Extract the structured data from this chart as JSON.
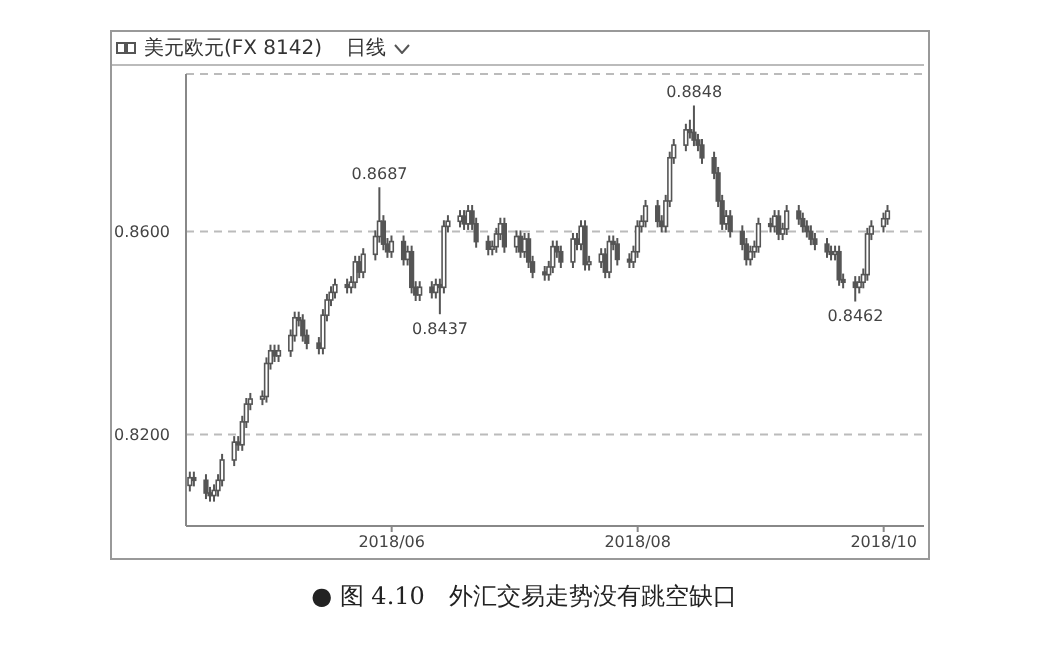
{
  "chart_data": {
    "type": "candlestick",
    "title": "美元欧元(FX 8142)",
    "subtitle": "日线",
    "color": "#555555",
    "grid": "y",
    "xlim": [
      "2018-04-11",
      "2018-10-11"
    ],
    "xticks": [
      {
        "value": "2018-06-01",
        "label": "2018/06"
      },
      {
        "value": "2018-08-01",
        "label": "2018/08"
      },
      {
        "value": "2018-10-01",
        "label": "2018/10"
      }
    ],
    "ylim": [
      0.802,
      0.891
    ],
    "yticks": [
      {
        "value": 0.82,
        "label": "0.8200"
      },
      {
        "value": 0.86,
        "label": "0.8600"
      }
    ],
    "x": [
      "2018-04-12",
      "2018-04-13",
      "2018-04-16",
      "2018-04-17",
      "2018-04-18",
      "2018-04-19",
      "2018-04-20",
      "2018-04-23",
      "2018-04-24",
      "2018-04-25",
      "2018-04-26",
      "2018-04-27",
      "2018-04-30",
      "2018-05-01",
      "2018-05-02",
      "2018-05-03",
      "2018-05-04",
      "2018-05-07",
      "2018-05-08",
      "2018-05-09",
      "2018-05-10",
      "2018-05-11",
      "2018-05-14",
      "2018-05-15",
      "2018-05-16",
      "2018-05-17",
      "2018-05-18",
      "2018-05-21",
      "2018-05-22",
      "2018-05-23",
      "2018-05-24",
      "2018-05-25",
      "2018-05-28",
      "2018-05-29",
      "2018-05-30",
      "2018-05-31",
      "2018-06-01",
      "2018-06-04",
      "2018-06-05",
      "2018-06-06",
      "2018-06-07",
      "2018-06-08",
      "2018-06-11",
      "2018-06-12",
      "2018-06-13",
      "2018-06-14",
      "2018-06-15",
      "2018-06-18",
      "2018-06-19",
      "2018-06-20",
      "2018-06-21",
      "2018-06-22",
      "2018-06-25",
      "2018-06-26",
      "2018-06-27",
      "2018-06-28",
      "2018-06-29",
      "2018-07-02",
      "2018-07-03",
      "2018-07-04",
      "2018-07-05",
      "2018-07-06",
      "2018-07-09",
      "2018-07-10",
      "2018-07-11",
      "2018-07-12",
      "2018-07-13",
      "2018-07-16",
      "2018-07-17",
      "2018-07-18",
      "2018-07-19",
      "2018-07-20",
      "2018-07-23",
      "2018-07-24",
      "2018-07-25",
      "2018-07-26",
      "2018-07-27",
      "2018-07-30",
      "2018-07-31",
      "2018-08-01",
      "2018-08-02",
      "2018-08-03",
      "2018-08-06",
      "2018-08-07",
      "2018-08-08",
      "2018-08-09",
      "2018-08-10",
      "2018-08-13",
      "2018-08-14",
      "2018-08-15",
      "2018-08-16",
      "2018-08-17",
      "2018-08-20",
      "2018-08-21",
      "2018-08-22",
      "2018-08-23",
      "2018-08-24",
      "2018-08-27",
      "2018-08-28",
      "2018-08-29",
      "2018-08-30",
      "2018-08-31",
      "2018-09-03",
      "2018-09-04",
      "2018-09-05",
      "2018-09-06",
      "2018-09-07",
      "2018-09-10",
      "2018-09-11",
      "2018-09-12",
      "2018-09-13",
      "2018-09-14",
      "2018-09-17",
      "2018-09-18",
      "2018-09-19",
      "2018-09-20",
      "2018-09-21",
      "2018-09-24",
      "2018-09-25",
      "2018-09-26",
      "2018-09-27",
      "2018-09-28",
      "2018-10-01",
      "2018-10-02"
    ],
    "ohlc": [
      [
        0.81,
        0.8127,
        0.8088,
        0.8115
      ],
      [
        0.8115,
        0.8127,
        0.8098,
        0.811
      ],
      [
        0.811,
        0.8122,
        0.8073,
        0.8085
      ],
      [
        0.8085,
        0.8097,
        0.8068,
        0.808
      ],
      [
        0.808,
        0.8102,
        0.8068,
        0.809
      ],
      [
        0.809,
        0.8122,
        0.8078,
        0.811
      ],
      [
        0.811,
        0.8162,
        0.8098,
        0.815
      ],
      [
        0.815,
        0.8197,
        0.8138,
        0.8185
      ],
      [
        0.8185,
        0.8197,
        0.8168,
        0.818
      ],
      [
        0.818,
        0.8237,
        0.8168,
        0.8225
      ],
      [
        0.8225,
        0.8272,
        0.8213,
        0.826
      ],
      [
        0.826,
        0.8282,
        0.8248,
        0.827
      ],
      [
        0.827,
        0.8287,
        0.8258,
        0.8275
      ],
      [
        0.8275,
        0.8352,
        0.8263,
        0.834
      ],
      [
        0.834,
        0.8377,
        0.8328,
        0.8365
      ],
      [
        0.8365,
        0.8377,
        0.8343,
        0.8355
      ],
      [
        0.8355,
        0.8377,
        0.8343,
        0.8365
      ],
      [
        0.8365,
        0.8407,
        0.8353,
        0.8395
      ],
      [
        0.8395,
        0.8442,
        0.8383,
        0.843
      ],
      [
        0.843,
        0.8442,
        0.8413,
        0.8425
      ],
      [
        0.8425,
        0.8437,
        0.8383,
        0.8395
      ],
      [
        0.8395,
        0.8407,
        0.8368,
        0.838
      ],
      [
        0.838,
        0.8392,
        0.8358,
        0.837
      ],
      [
        0.837,
        0.8447,
        0.8358,
        0.8435
      ],
      [
        0.8435,
        0.8477,
        0.8423,
        0.8465
      ],
      [
        0.8465,
        0.8492,
        0.8453,
        0.848
      ],
      [
        0.848,
        0.8507,
        0.8468,
        0.8495
      ],
      [
        0.8495,
        0.8507,
        0.8478,
        0.849
      ],
      [
        0.849,
        0.8512,
        0.8478,
        0.85
      ],
      [
        0.85,
        0.8552,
        0.8488,
        0.854
      ],
      [
        0.854,
        0.8552,
        0.8508,
        0.852
      ],
      [
        0.852,
        0.8567,
        0.8508,
        0.8555
      ],
      [
        0.8555,
        0.8602,
        0.8543,
        0.859
      ],
      [
        0.859,
        0.8687,
        0.8578,
        0.862
      ],
      [
        0.862,
        0.8632,
        0.8563,
        0.8575
      ],
      [
        0.8575,
        0.8587,
        0.8548,
        0.856
      ],
      [
        0.856,
        0.8592,
        0.8548,
        0.858
      ],
      [
        0.858,
        0.8592,
        0.8533,
        0.8545
      ],
      [
        0.8545,
        0.8572,
        0.8533,
        0.856
      ],
      [
        0.856,
        0.8572,
        0.8478,
        0.849
      ],
      [
        0.849,
        0.8502,
        0.8463,
        0.8475
      ],
      [
        0.8475,
        0.8502,
        0.8463,
        0.849
      ],
      [
        0.849,
        0.8502,
        0.8468,
        0.848
      ],
      [
        0.848,
        0.8507,
        0.8468,
        0.8495
      ],
      [
        0.8495,
        0.8507,
        0.8437,
        0.849
      ],
      [
        0.849,
        0.8622,
        0.8478,
        0.861
      ],
      [
        0.861,
        0.8632,
        0.8598,
        0.862
      ],
      [
        0.862,
        0.8642,
        0.8608,
        0.863
      ],
      [
        0.863,
        0.8642,
        0.8603,
        0.8615
      ],
      [
        0.8615,
        0.8652,
        0.8603,
        0.864
      ],
      [
        0.864,
        0.8652,
        0.8603,
        0.8615
      ],
      [
        0.8615,
        0.8627,
        0.8568,
        0.858
      ],
      [
        0.858,
        0.8592,
        0.8553,
        0.8565
      ],
      [
        0.8565,
        0.8582,
        0.8553,
        0.857
      ],
      [
        0.857,
        0.8607,
        0.8558,
        0.8595
      ],
      [
        0.8595,
        0.8627,
        0.8583,
        0.8615
      ],
      [
        0.8615,
        0.8627,
        0.8558,
        0.857
      ],
      [
        0.857,
        0.8602,
        0.8558,
        0.859
      ],
      [
        0.859,
        0.8602,
        0.8548,
        0.856
      ],
      [
        0.856,
        0.8597,
        0.8548,
        0.8585
      ],
      [
        0.8585,
        0.8597,
        0.8528,
        0.854
      ],
      [
        0.854,
        0.8552,
        0.8508,
        0.852
      ],
      [
        0.852,
        0.8532,
        0.8503,
        0.8515
      ],
      [
        0.8515,
        0.8542,
        0.8503,
        0.853
      ],
      [
        0.853,
        0.8582,
        0.8518,
        0.857
      ],
      [
        0.857,
        0.8582,
        0.8548,
        0.856
      ],
      [
        0.856,
        0.8572,
        0.8528,
        0.854
      ],
      [
        0.854,
        0.8597,
        0.8528,
        0.8585
      ],
      [
        0.8585,
        0.8597,
        0.8563,
        0.8575
      ],
      [
        0.8575,
        0.8622,
        0.8563,
        0.861
      ],
      [
        0.861,
        0.8622,
        0.8523,
        0.8535
      ],
      [
        0.8535,
        0.8552,
        0.8523,
        0.854
      ],
      [
        0.854,
        0.8567,
        0.8528,
        0.8555
      ],
      [
        0.8555,
        0.8567,
        0.8508,
        0.852
      ],
      [
        0.852,
        0.8592,
        0.8508,
        0.858
      ],
      [
        0.858,
        0.8592,
        0.8563,
        0.8575
      ],
      [
        0.8575,
        0.8587,
        0.8533,
        0.8545
      ],
      [
        0.8545,
        0.8557,
        0.8528,
        0.854
      ],
      [
        0.854,
        0.8572,
        0.8528,
        0.856
      ],
      [
        0.856,
        0.8622,
        0.8548,
        0.861
      ],
      [
        0.861,
        0.8632,
        0.8598,
        0.862
      ],
      [
        0.862,
        0.8662,
        0.8608,
        0.865
      ],
      [
        0.865,
        0.8662,
        0.8608,
        0.862
      ],
      [
        0.862,
        0.8632,
        0.8598,
        0.861
      ],
      [
        0.861,
        0.8672,
        0.8598,
        0.866
      ],
      [
        0.866,
        0.8757,
        0.8648,
        0.8745
      ],
      [
        0.8745,
        0.8782,
        0.8733,
        0.877
      ],
      [
        0.877,
        0.8812,
        0.8758,
        0.88
      ],
      [
        0.88,
        0.882,
        0.8783,
        0.8795
      ],
      [
        0.8795,
        0.8848,
        0.8768,
        0.878
      ],
      [
        0.878,
        0.8792,
        0.8758,
        0.877
      ],
      [
        0.877,
        0.8782,
        0.8733,
        0.8745
      ],
      [
        0.8745,
        0.8757,
        0.8703,
        0.8715
      ],
      [
        0.8715,
        0.8727,
        0.8648,
        0.866
      ],
      [
        0.866,
        0.8672,
        0.8603,
        0.8615
      ],
      [
        0.8615,
        0.8642,
        0.8603,
        0.863
      ],
      [
        0.863,
        0.8642,
        0.8588,
        0.86
      ],
      [
        0.86,
        0.8612,
        0.8563,
        0.8575
      ],
      [
        0.8575,
        0.8587,
        0.8533,
        0.8545
      ],
      [
        0.8545,
        0.8572,
        0.8533,
        0.856
      ],
      [
        0.856,
        0.8582,
        0.8548,
        0.857
      ],
      [
        0.857,
        0.8627,
        0.8558,
        0.8615
      ],
      [
        0.8615,
        0.8627,
        0.8598,
        0.861
      ],
      [
        0.861,
        0.8642,
        0.8598,
        0.863
      ],
      [
        0.863,
        0.8642,
        0.8583,
        0.8595
      ],
      [
        0.8595,
        0.8617,
        0.8583,
        0.8605
      ],
      [
        0.8605,
        0.8652,
        0.8593,
        0.864
      ],
      [
        0.864,
        0.8652,
        0.8613,
        0.8625
      ],
      [
        0.8625,
        0.8637,
        0.8598,
        0.861
      ],
      [
        0.861,
        0.8622,
        0.8588,
        0.86
      ],
      [
        0.86,
        0.8612,
        0.8573,
        0.8585
      ],
      [
        0.8585,
        0.8597,
        0.8563,
        0.8575
      ],
      [
        0.8575,
        0.8587,
        0.8548,
        0.856
      ],
      [
        0.856,
        0.8572,
        0.8543,
        0.8555
      ],
      [
        0.8555,
        0.8572,
        0.8543,
        0.856
      ],
      [
        0.856,
        0.8572,
        0.8493,
        0.8505
      ],
      [
        0.8505,
        0.8517,
        0.8488,
        0.85
      ],
      [
        0.85,
        0.8512,
        0.8462,
        0.849
      ],
      [
        0.849,
        0.8512,
        0.8478,
        0.85
      ],
      [
        0.85,
        0.8527,
        0.8488,
        0.8515
      ],
      [
        0.8515,
        0.8607,
        0.8503,
        0.8595
      ],
      [
        0.8595,
        0.8622,
        0.8583,
        0.861
      ],
      [
        0.861,
        0.8637,
        0.8598,
        0.8625
      ],
      [
        0.8625,
        0.8652,
        0.8613,
        0.864
      ]
    ],
    "annotations": [
      {
        "text": "0.8687",
        "x": "2018-05-29",
        "y": 0.8687
      },
      {
        "text": "0.8437",
        "x": "2018-06-13",
        "y": 0.8437
      },
      {
        "text": "0.8848",
        "x": "2018-08-15",
        "y": 0.8848
      },
      {
        "text": "0.8462",
        "x": "2018-09-24",
        "y": 0.8462
      },
      "● 图 4.10　外汇交易走势没有跳空缺口"
    ]
  }
}
